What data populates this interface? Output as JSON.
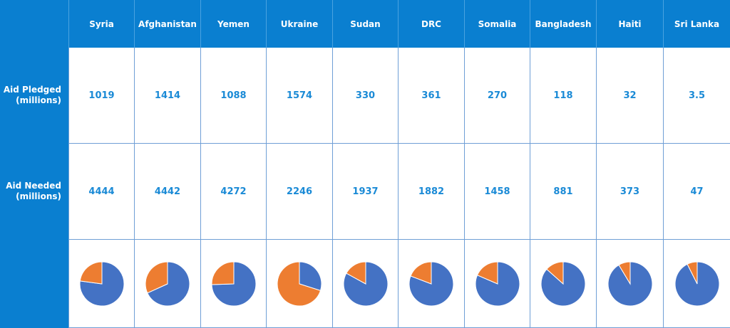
{
  "chart_data": {
    "type": "table",
    "categories": [
      "Syria",
      "Afghanistan",
      "Yemen",
      "Ukraine",
      "Sudan",
      "DRC",
      "Somalia",
      "Bangladesh",
      "Haiti",
      "Sri Lanka"
    ],
    "row_labels": {
      "pledged": [
        "Aid Pledged",
        "(millions)"
      ],
      "needed": [
        "Aid Needed",
        "(millions)"
      ]
    },
    "pledged": [
      "1019",
      "1414",
      "1088",
      "1574",
      "330",
      "361",
      "270",
      "118",
      "32",
      "3.5"
    ],
    "needed": [
      "4444",
      "4442",
      "4272",
      "2246",
      "1937",
      "1882",
      "1458",
      "881",
      "373",
      "47"
    ],
    "pie": {
      "slice_colors": {
        "pledged": "#ed7d31",
        "remaining": "#4472c4"
      },
      "pledged_fraction": [
        0.229,
        0.318,
        0.255,
        0.701,
        0.17,
        0.192,
        0.185,
        0.134,
        0.086,
        0.074
      ]
    }
  }
}
